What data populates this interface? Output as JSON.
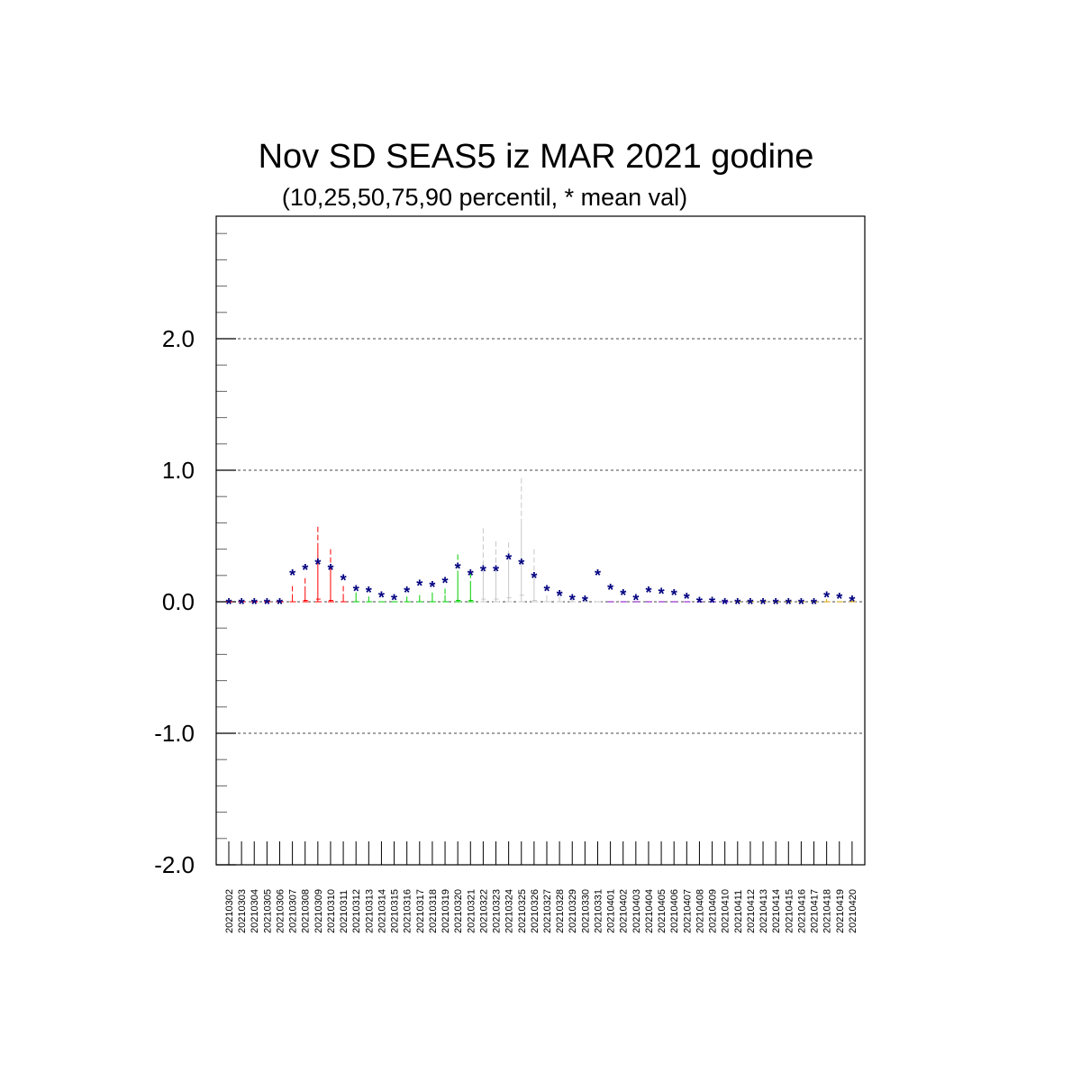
{
  "chart_data": {
    "type": "box-percentile",
    "title": "Nov SD SEAS5 iz MAR 2021 godine",
    "subtitle": "(10,25,50,75,90 percentil, * mean val)",
    "ylim": [
      -2.0,
      2.9
    ],
    "yticks": [
      "2.0",
      "1.0",
      "0.0",
      "-1.0",
      "-2.0"
    ],
    "ytick_values": [
      2.0,
      1.0,
      0.0,
      -1.0,
      -2.0
    ],
    "grid_lines": [
      2.0,
      1.0,
      0.0,
      -1.0
    ],
    "mean_marker": "*",
    "categories": [
      "20210302",
      "20210303",
      "20210304",
      "20210305",
      "20210306",
      "20210307",
      "20210308",
      "20210309",
      "20210310",
      "20210311",
      "20210312",
      "20210313",
      "20210314",
      "20210315",
      "20210316",
      "20210317",
      "20210318",
      "20210319",
      "20210320",
      "20210321",
      "20210322",
      "20210323",
      "20210324",
      "20210325",
      "20210326",
      "20210327",
      "20210328",
      "20210329",
      "20210330",
      "20210331",
      "20210401",
      "20210402",
      "20210403",
      "20210404",
      "20210405",
      "20210406",
      "20210407",
      "20210408",
      "20210409",
      "20210410",
      "20210411",
      "20210412",
      "20210413",
      "20210414",
      "20210415",
      "20210416",
      "20210417",
      "20210418",
      "20210419",
      "20210420"
    ],
    "mean": [
      0.0,
      0.0,
      0.0,
      0.0,
      0.0,
      0.22,
      0.26,
      0.3,
      0.26,
      0.18,
      0.1,
      0.09,
      0.05,
      0.03,
      0.09,
      0.14,
      0.13,
      0.16,
      0.27,
      0.22,
      0.25,
      0.25,
      0.34,
      0.3,
      0.2,
      0.1,
      0.06,
      0.03,
      0.02,
      0.22,
      0.11,
      0.07,
      0.03,
      0.09,
      0.08,
      0.07,
      0.04,
      0.01,
      0.01,
      0.0,
      0.0,
      0.0,
      0.0,
      0.0,
      0.0,
      0.0,
      0.0,
      0.05,
      0.04,
      0.02
    ],
    "p90": [
      0.0,
      0.0,
      0.0,
      0.0,
      0.0,
      0.12,
      0.18,
      0.57,
      0.4,
      0.12,
      0.07,
      0.04,
      0.0,
      0.0,
      0.04,
      0.05,
      0.07,
      0.1,
      0.36,
      0.22,
      0.56,
      0.46,
      0.45,
      0.94,
      0.4,
      0.05,
      0.04,
      0.02,
      0.01,
      0.0,
      0.0,
      0.0,
      0.0,
      0.0,
      0.0,
      0.0,
      0.0,
      0.0,
      0.0,
      0.0,
      0.0,
      0.0,
      0.0,
      0.0,
      0.0,
      0.0,
      0.0,
      0.02,
      0.0,
      0.01
    ],
    "p75": [
      0.0,
      0.0,
      0.0,
      0.0,
      0.0,
      0.05,
      0.08,
      0.42,
      0.26,
      0.06,
      0.03,
      0.02,
      0.0,
      0.0,
      0.02,
      0.03,
      0.03,
      0.05,
      0.22,
      0.12,
      0.3,
      0.26,
      0.32,
      0.6,
      0.2,
      0.02,
      0.02,
      0.01,
      0.0,
      0.0,
      0.0,
      0.0,
      0.0,
      0.0,
      0.0,
      0.0,
      0.0,
      0.0,
      0.0,
      0.0,
      0.0,
      0.0,
      0.0,
      0.0,
      0.0,
      0.0,
      0.0,
      0.01,
      0.0,
      0.0
    ],
    "p50": [
      0.0,
      0.0,
      0.0,
      0.0,
      0.0,
      0.0,
      0.01,
      0.02,
      0.01,
      0.0,
      0.0,
      0.0,
      0.0,
      0.0,
      0.0,
      0.0,
      0.0,
      0.0,
      0.01,
      0.01,
      0.02,
      0.02,
      0.03,
      0.05,
      0.01,
      0.0,
      0.0,
      0.0,
      0.0,
      0.0,
      0.0,
      0.0,
      0.0,
      0.0,
      0.0,
      0.0,
      0.0,
      0.0,
      0.0,
      0.0,
      0.0,
      0.0,
      0.0,
      0.0,
      0.0,
      0.0,
      0.0,
      0.0,
      0.0,
      0.0
    ],
    "p25": [
      0.0,
      0.0,
      0.0,
      0.0,
      0.0,
      0.0,
      0.0,
      0.0,
      0.0,
      0.0,
      0.0,
      0.0,
      0.0,
      0.0,
      0.0,
      0.0,
      0.0,
      0.0,
      0.0,
      0.0,
      0.0,
      0.0,
      0.0,
      0.0,
      0.0,
      0.0,
      0.0,
      0.0,
      0.0,
      0.0,
      0.0,
      0.0,
      0.0,
      0.0,
      0.0,
      0.0,
      0.0,
      0.0,
      0.0,
      0.0,
      0.0,
      0.0,
      0.0,
      0.0,
      0.0,
      0.0,
      0.0,
      0.0,
      0.0,
      0.0
    ],
    "p10": [
      0.0,
      0.0,
      0.0,
      0.0,
      0.0,
      0.0,
      0.0,
      0.0,
      0.0,
      0.0,
      0.0,
      0.0,
      0.0,
      0.0,
      0.0,
      0.0,
      0.0,
      0.0,
      0.0,
      0.0,
      0.0,
      0.0,
      0.0,
      0.0,
      0.0,
      0.0,
      0.0,
      0.0,
      0.0,
      0.0,
      0.0,
      0.0,
      0.0,
      0.0,
      0.0,
      0.0,
      0.0,
      0.0,
      0.0,
      0.0,
      0.0,
      0.0,
      0.0,
      0.0,
      0.0,
      0.0,
      0.0,
      0.0,
      0.0,
      0.0
    ],
    "colors": [
      "#ff0000",
      "#ff0000",
      "#ff0000",
      "#ff0000",
      "#ff0000",
      "#ff0000",
      "#ff0000",
      "#ff0000",
      "#ff0000",
      "#ff0000",
      "#00cc00",
      "#00cc00",
      "#00cc00",
      "#00cc00",
      "#00cc00",
      "#00cc00",
      "#00cc00",
      "#00cc00",
      "#00cc00",
      "#00cc00",
      "#c8c8c8",
      "#c8c8c8",
      "#c8c8c8",
      "#c8c8c8",
      "#c8c8c8",
      "#c8c8c8",
      "#c8c8c8",
      "#c8c8c8",
      "#c8c8c8",
      "#c8c8c8",
      "#8000c0",
      "#8000c0",
      "#8000c0",
      "#8000c0",
      "#8000c0",
      "#8000c0",
      "#8000c0",
      "#8000c0",
      "#8000c0",
      "#8000c0",
      "#d4a000",
      "#d4a000",
      "#d4a000",
      "#d4a000",
      "#d4a000",
      "#d4a000",
      "#d4a000",
      "#d4a000",
      "#d4a000",
      "#d4a000"
    ],
    "mean_color": "#000080",
    "grid": true
  }
}
